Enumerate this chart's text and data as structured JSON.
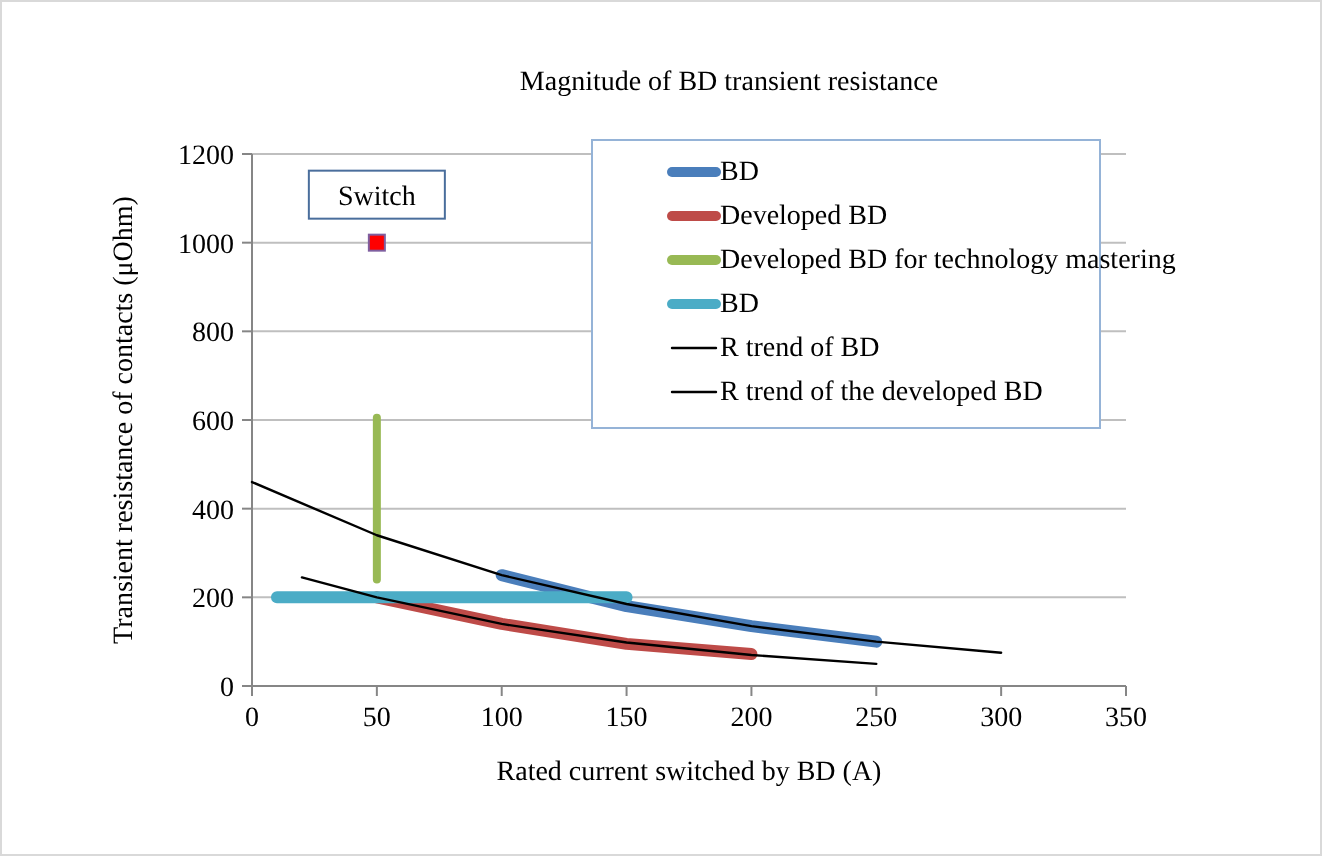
{
  "chart_data": {
    "type": "line",
    "title": "Magnitude of BD transient resistance",
    "xlabel": "Rated current switched by BD (A)",
    "ylabel": "Transient resistance of contacts (μOhm)",
    "xlim": [
      0,
      350
    ],
    "xticks": [
      0,
      50,
      100,
      150,
      200,
      250,
      300,
      350
    ],
    "ylim": [
      0,
      1200
    ],
    "yticks": [
      0,
      200,
      400,
      600,
      800,
      1000,
      1200
    ],
    "grid": "y",
    "legend": "top right",
    "marker": "none",
    "series": [
      {
        "name": "BD",
        "color": "#4a7ebb",
        "x": [
          100,
          150,
          200,
          250
        ],
        "values": [
          250,
          180,
          135,
          100
        ]
      },
      {
        "name": "Developed BD",
        "color": "#be4b48",
        "x": [
          50,
          100,
          150,
          200
        ],
        "values": [
          200,
          140,
          95,
          72
        ]
      },
      {
        "name": "Developed BD for technology mastering",
        "color": "#98b954",
        "x": [
          50,
          50
        ],
        "values": [
          240,
          605
        ]
      },
      {
        "name": "BD",
        "color": "#4bacc6",
        "x": [
          10,
          150
        ],
        "values": [
          200,
          200
        ]
      },
      {
        "name": "R trend of BD",
        "color": "#000000",
        "x": [
          0,
          50,
          100,
          150,
          200,
          250,
          300
        ],
        "values": [
          460,
          340,
          250,
          185,
          135,
          100,
          75
        ]
      },
      {
        "name": "R trend of  the developed BD",
        "color": "#000000",
        "x": [
          20,
          50,
          100,
          150,
          200,
          250
        ],
        "values": [
          245,
          200,
          140,
          98,
          70,
          50
        ]
      },
      {
        "type": "scatter",
        "color": "#ff0000",
        "marker": "square",
        "x": [
          50
        ],
        "values": [
          1000
        ]
      }
    ],
    "annotations": [
      {
        "text": "Switch",
        "x": 50,
        "y": 1000
      }
    ]
  }
}
